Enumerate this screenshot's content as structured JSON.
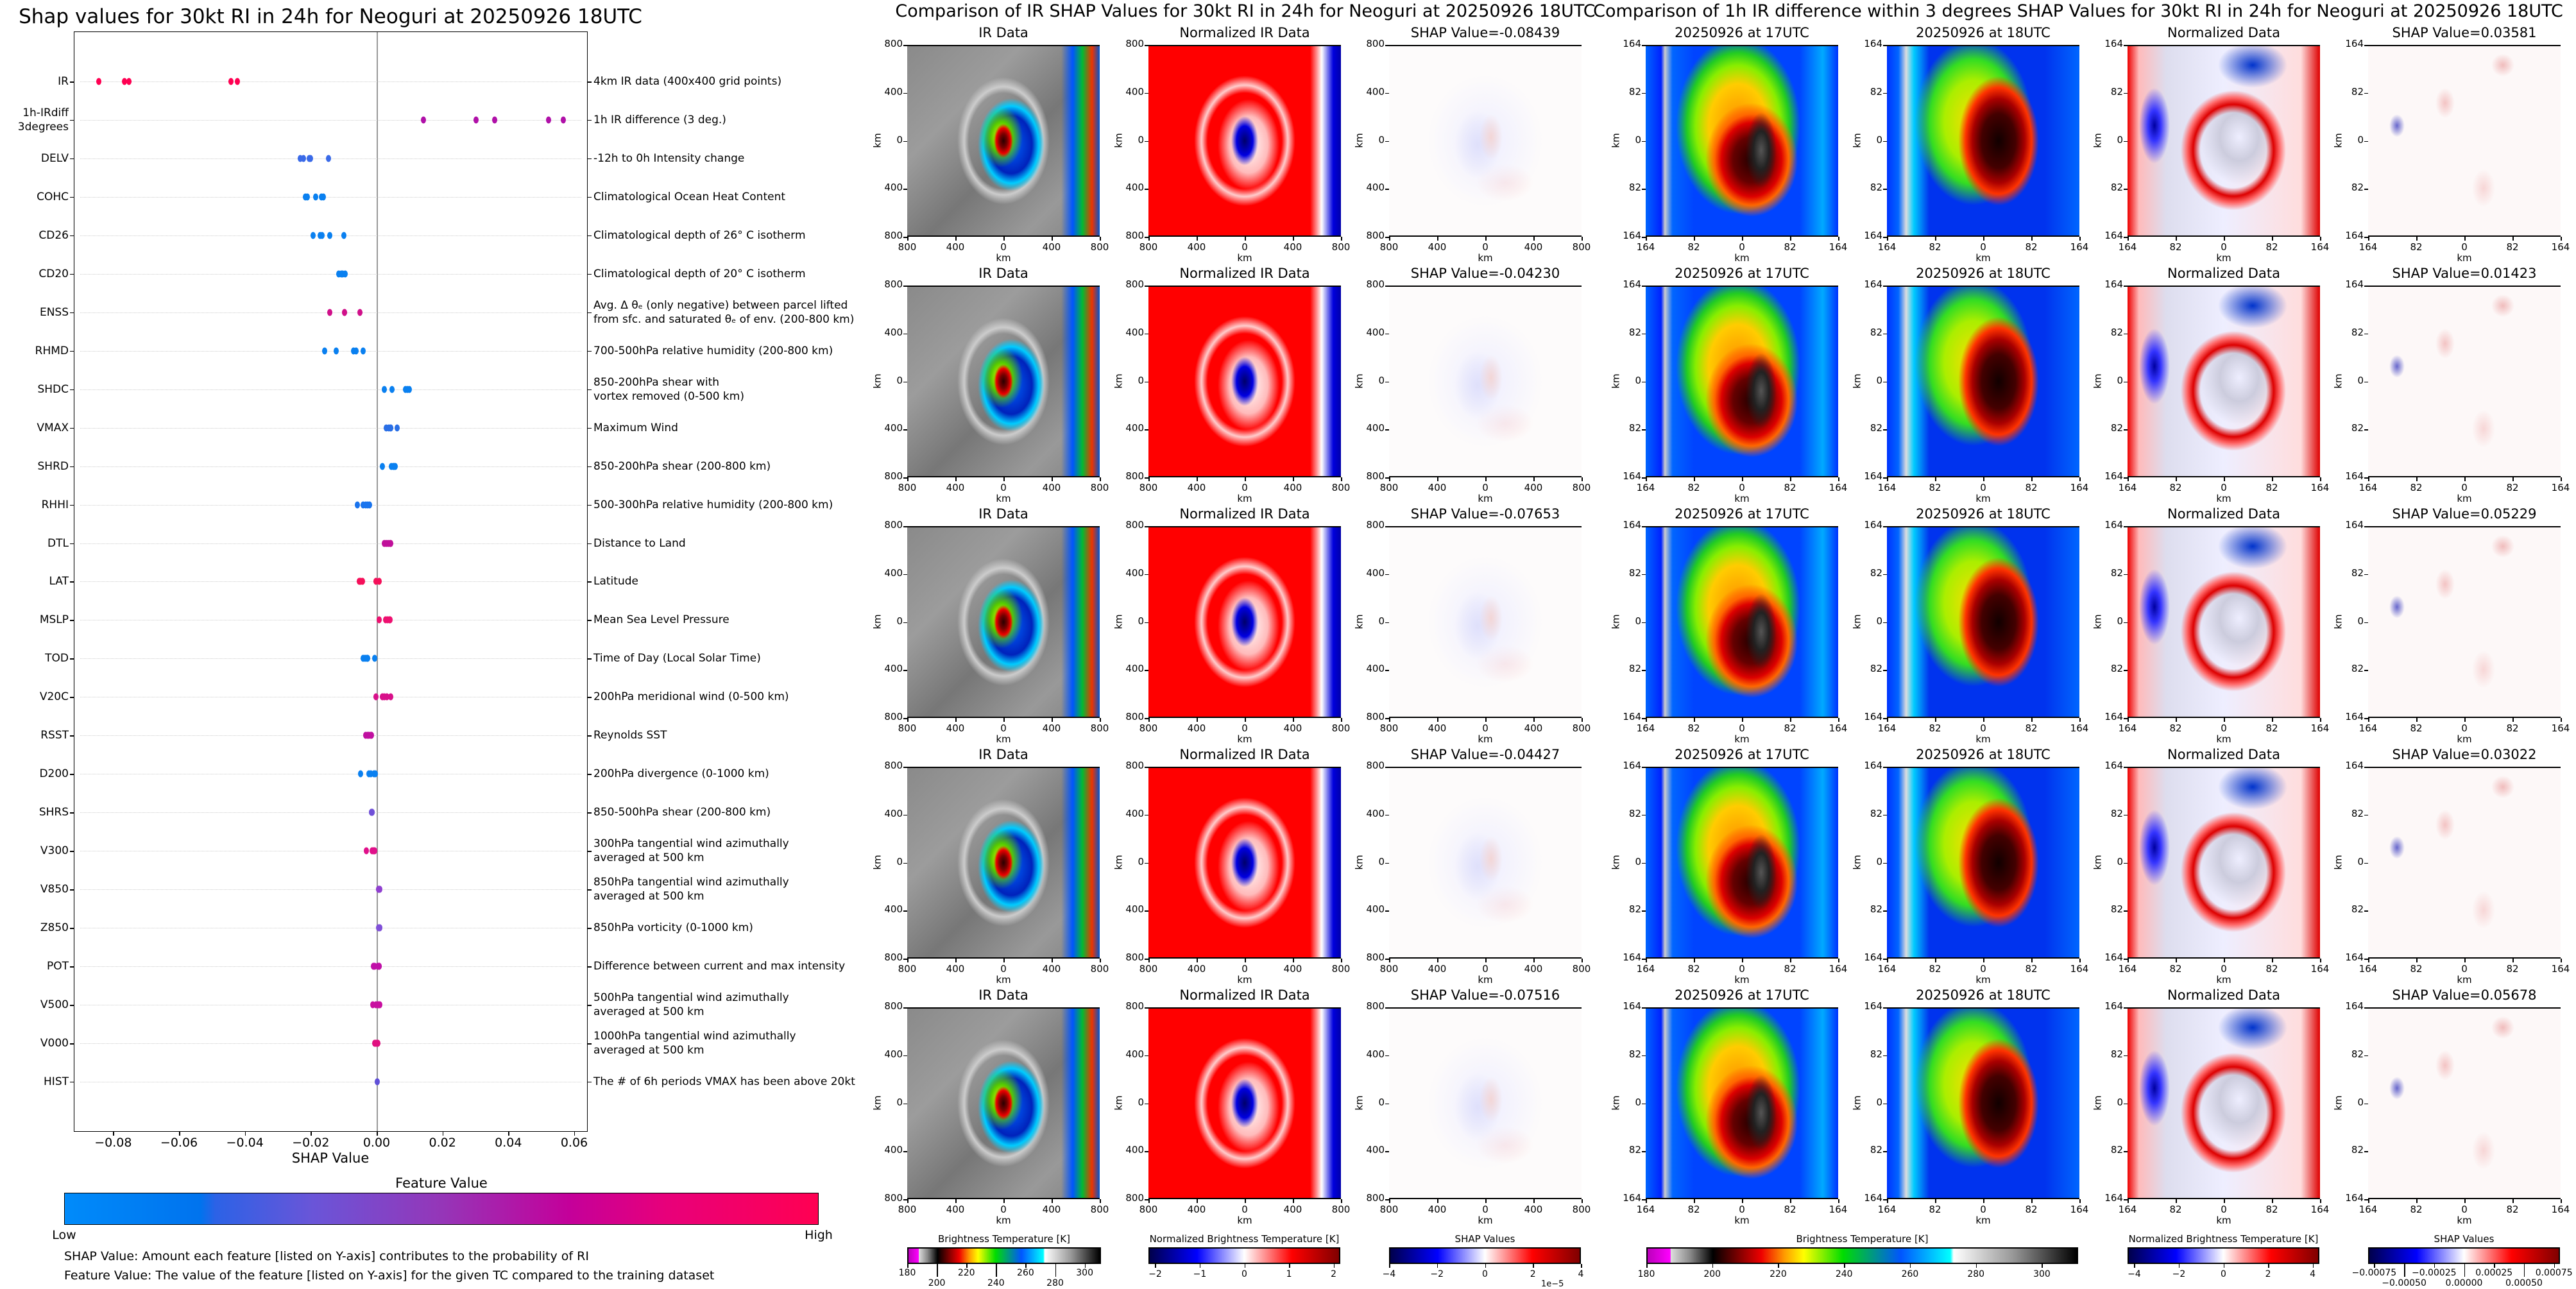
{
  "chart_data": {
    "type": "scatter",
    "title": "Shap values for 30kt RI in 24h for Neoguri at 20250926 18UTC",
    "xlabel": "SHAP Value",
    "xlim": [
      -0.092,
      0.064
    ],
    "xticks": [
      -0.08,
      -0.06,
      -0.04,
      -0.02,
      0.0,
      0.02,
      0.04,
      0.06
    ],
    "xtick_labels": [
      "−0.08",
      "−0.06",
      "−0.04",
      "−0.02",
      "0.00",
      "0.02",
      "0.04",
      "0.06"
    ],
    "grid": "horizontal dotted",
    "features": [
      {
        "code": "IR",
        "description": "4km IR data (400x400 grid points)",
        "color": "#ff0052",
        "values": [
          -0.08439,
          -0.07653,
          -0.07516,
          -0.04427,
          -0.0423
        ]
      },
      {
        "code": "1h-IRdiff\n3degrees",
        "description": "1h IR difference (3 deg.)",
        "color": "#b010a8",
        "values": [
          0.01423,
          0.03022,
          0.03581,
          0.05229,
          0.05678
        ]
      },
      {
        "code": "DELV",
        "description": "-12h to 0h Intensity change",
        "color": "#3a6ae8",
        "values": [
          -0.0232,
          -0.0222,
          -0.0205,
          -0.02,
          -0.0147
        ]
      },
      {
        "code": "COHC",
        "description": "Climatological Ocean Heat Content",
        "color": "#0a80f0",
        "values": [
          -0.0217,
          -0.021,
          -0.0185,
          -0.0168,
          -0.0162
        ]
      },
      {
        "code": "CD26",
        "description": "Climatological depth of 26° C isotherm",
        "color": "#0a80f0",
        "values": [
          -0.0192,
          -0.0172,
          -0.0165,
          -0.0142,
          -0.01
        ]
      },
      {
        "code": "CD20",
        "description": "Climatological depth of 20° C isotherm",
        "color": "#0a80f0",
        "values": [
          -0.0115,
          -0.0108,
          -0.0103,
          -0.0095
        ]
      },
      {
        "code": "ENSS",
        "description": "Avg. Δ θₑ (only negative) between parcel lifted\nfrom sfc. and saturated θₑ of env. (200-800 km)",
        "color": "#d0108a",
        "values": [
          -0.0142,
          -0.0098,
          -0.0097,
          -0.005
        ]
      },
      {
        "code": "RHMD",
        "description": "700-500hPa relative humidity (200-800 km)",
        "color": "#0a80f0",
        "values": [
          -0.0158,
          -0.0122,
          -0.007,
          -0.0063,
          -0.004
        ]
      },
      {
        "code": "SHDC",
        "description": "850-200hPa shear with\nvortex removed (0-500 km)",
        "color": "#0a80f0",
        "values": [
          0.0023,
          0.0047,
          0.0087,
          0.0093,
          0.01
        ]
      },
      {
        "code": "VMAX",
        "description": "Maximum Wind",
        "color": "#2a6fe6",
        "values": [
          0.003,
          0.0037,
          0.0042,
          0.0043,
          0.0062
        ]
      },
      {
        "code": "SHRD",
        "description": "850-200hPa shear (200-800 km)",
        "color": "#0a80f0",
        "values": [
          0.0018,
          0.0045,
          0.005,
          0.0053,
          0.0057
        ]
      },
      {
        "code": "RHHI",
        "description": "500-300hPa relative humidity (200-800 km)",
        "color": "#1a74ee",
        "values": [
          -0.0058,
          -0.004,
          -0.0033,
          -0.0027,
          -0.0022
        ]
      },
      {
        "code": "DTL",
        "description": "Distance to Land",
        "color": "#c0109a",
        "values": [
          0.0023,
          0.003,
          0.0035,
          0.004,
          0.0043
        ]
      },
      {
        "code": "LAT",
        "description": "Latitude",
        "color": "#f5105a",
        "values": [
          -0.0053,
          -0.0048,
          -0.0042,
          -0.0002,
          0.0007
        ]
      },
      {
        "code": "MSLP",
        "description": "Mean Sea Level Pressure",
        "color": "#ee1070",
        "values": [
          0.0007,
          0.0028,
          0.0033,
          0.0038,
          0.004
        ]
      },
      {
        "code": "TOD",
        "description": "Time of Day (Local Solar Time)",
        "color": "#0a80f0",
        "values": [
          -0.004,
          -0.0035,
          -0.003,
          -0.0027,
          -0.0005
        ]
      },
      {
        "code": "V20C",
        "description": "200hPa meridional wind (0-500 km)",
        "color": "#d8108a",
        "values": [
          -0.0002,
          0.0018,
          0.0023,
          0.0032,
          0.0043
        ]
      },
      {
        "code": "RSST",
        "description": "Reynolds SST",
        "color": "#c010a0",
        "values": [
          -0.0033,
          -0.0028,
          -0.0023,
          -0.0018,
          -0.0015
        ]
      },
      {
        "code": "D200",
        "description": "200hPa divergence (0-1000 km)",
        "color": "#0a80f0",
        "values": [
          -0.0048,
          -0.0023,
          -0.0018,
          -0.0007,
          -0.0003
        ]
      },
      {
        "code": "SHRS",
        "description": "850-500hPa shear (200-800 km)",
        "color": "#7050d8",
        "values": [
          -0.0016,
          -0.0015,
          -0.0014,
          -0.0014,
          -0.0013
        ]
      },
      {
        "code": "V300",
        "description": "300hPa tangential wind azimuthally\naveraged at 500 km",
        "color": "#e0108a",
        "values": [
          -0.0032,
          -0.0013,
          -0.001,
          -0.0008,
          -0.0005
        ]
      },
      {
        "code": "V850",
        "description": "850hPa tangential wind azimuthally\naveraged at 500 km",
        "color": "#9040d0",
        "values": [
          0.0005,
          0.0006,
          0.0007,
          0.0008,
          0.0009
        ]
      },
      {
        "code": "Z850",
        "description": "850hPa vorticity (0-1000 km)",
        "color": "#8050d8",
        "values": [
          0.0005,
          0.0007,
          0.0008,
          0.0009,
          0.001
        ]
      },
      {
        "code": "POT",
        "description": "Difference between current and max intensity",
        "color": "#c010a8",
        "values": [
          -0.001,
          -0.0005,
          0.0003,
          0.0007,
          0.0008
        ]
      },
      {
        "code": "V500",
        "description": "500hPa tangential wind azimuthally\naveraged at 500 km",
        "color": "#c810a0",
        "values": [
          -0.0011,
          -0.0002,
          0.0003,
          0.0006,
          0.0009
        ]
      },
      {
        "code": "V000",
        "description": "1000hPa tangential wind azimuthally\naveraged at 500 km",
        "color": "#e01080",
        "values": [
          -0.0006,
          -0.0003,
          0.0,
          0.0002,
          0.0003
        ]
      },
      {
        "code": "HIST",
        "description": "The # of 6h periods VMAX has been above 20kt",
        "color": "#6050d8",
        "values": [
          0.0002
        ]
      }
    ],
    "colorbar": {
      "title": "Feature Value",
      "low": "Low",
      "high": "High"
    },
    "footnotes": [
      "SHAP Value: Amount each feature [listed on Y-axis] contributes to the probability of RI",
      "Feature Value: The value of the feature [listed on Y-axis] for the given TC compared to the training dataset"
    ]
  },
  "ir_comparison": {
    "title": "Comparison of IR SHAP Values for 30kt RI in 24h for Neoguri at 20250926 18UTC",
    "panel_titles": [
      "IR Data",
      "Normalized IR Data"
    ],
    "shap_titles": [
      "SHAP Value=-0.08439",
      "SHAP Value=-0.04230",
      "SHAP Value=-0.07653",
      "SHAP Value=-0.04427",
      "SHAP Value=-0.07516"
    ],
    "axis_ticks": [
      "800",
      "400",
      "0",
      "400",
      "800"
    ],
    "axis_label": "km",
    "colorbars": [
      {
        "title": "Brightness Temperature [K]",
        "type": "bt",
        "range": [
          180,
          311
        ],
        "ticks": [
          180,
          200,
          220,
          240,
          260,
          280,
          300
        ],
        "labels": [
          "180",
          "200",
          "220",
          "240",
          "260",
          "280",
          "300"
        ]
      },
      {
        "title": "Normalized Brightness Temperature [K]",
        "type": "seis",
        "range": [
          -2.15,
          2.15
        ],
        "ticks": [
          -2,
          -1,
          0,
          1,
          2
        ],
        "labels": [
          "−2",
          "−1",
          "0",
          "1",
          "2"
        ]
      },
      {
        "title": "SHAP Values",
        "type": "seis",
        "range": [
          -4,
          4
        ],
        "ticks": [
          -4,
          -2,
          0,
          2,
          4
        ],
        "labels": [
          "−4",
          "−2",
          "0",
          "2",
          "4"
        ],
        "offset": "1e−5"
      }
    ]
  },
  "irdiff_comparison": {
    "title": "Comparison of 1h IR difference within 3 degrees SHAP Values for 30kt RI in 24h for Neoguri at 20250926 18UTC",
    "panel_titles": [
      "20250926 at 17UTC",
      "20250926 at 18UTC",
      "Normalized Data"
    ],
    "shap_titles": [
      "SHAP Value=0.03581",
      "SHAP Value=0.01423",
      "SHAP Value=0.05229",
      "SHAP Value=0.03022",
      "SHAP Value=0.05678"
    ],
    "axis_ticks": [
      "164",
      "82",
      "0",
      "82",
      "164"
    ],
    "axis_label": "km",
    "colorbars": [
      {
        "title": "Brightness Temperature [K]",
        "type": "bt",
        "range": [
          180,
          311
        ],
        "ticks": [
          180,
          200,
          220,
          240,
          260,
          280,
          300
        ],
        "labels": [
          "180",
          "200",
          "220",
          "240",
          "260",
          "280",
          "300"
        ]
      },
      {
        "title": "Normalized Brightness Temperature [K]",
        "type": "seis",
        "range": [
          -4.3,
          4.3
        ],
        "ticks": [
          -4,
          -2,
          0,
          2,
          4
        ],
        "labels": [
          "−4",
          "−2",
          "0",
          "2",
          "4"
        ]
      },
      {
        "title": "SHAP Values",
        "type": "seis",
        "range": [
          -0.0008,
          0.0008
        ],
        "ticks": [
          -0.00075,
          -0.0005,
          -0.00025,
          0,
          0.00025,
          0.0005,
          0.00075
        ],
        "labels": [
          "−0.00075",
          "−0.00050",
          "−0.00025",
          "0.00000",
          "0.00025",
          "0.00050",
          "0.00075"
        ]
      }
    ]
  }
}
